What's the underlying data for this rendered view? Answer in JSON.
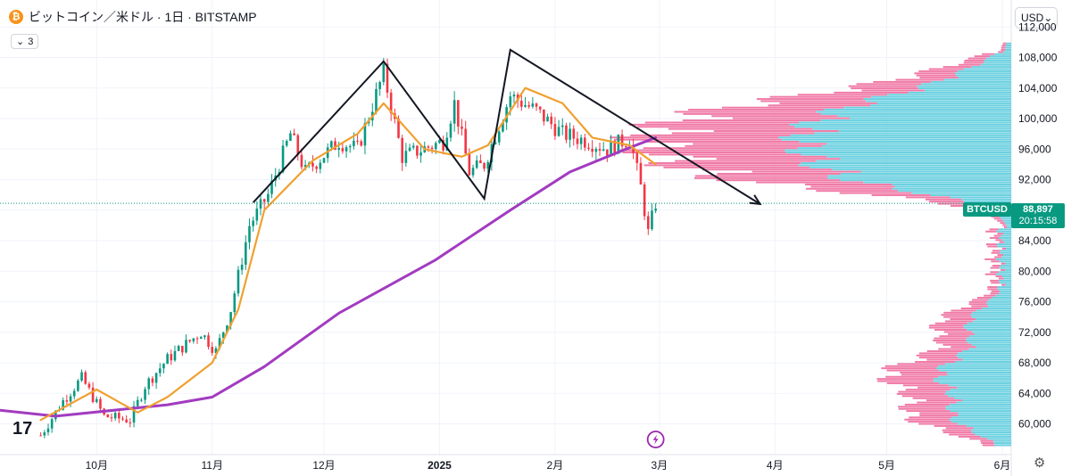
{
  "header": {
    "symbol_title": "ビットコイン／米ドル · 1日 · BITSTAMP",
    "coin_glyph": "₿"
  },
  "indicators": {
    "count": "3"
  },
  "currency": {
    "label": "USD"
  },
  "price_tag": {
    "symbol": "BTCUSD",
    "price": "88,897",
    "countdown": "20:15:58"
  },
  "logo": "17",
  "chart_data": {
    "type": "candlestick",
    "symbol": "BTCUSD",
    "interval": "1D",
    "last_price": 88897,
    "y_ticks": [
      "112,000",
      "108,000",
      "104,000",
      "100,000",
      "96,000",
      "92,000",
      "88,000",
      "84,000",
      "80,000",
      "76,000",
      "72,000",
      "68,000",
      "64,000",
      "60,000"
    ],
    "y_range": [
      57000,
      113000
    ],
    "x_ticks": [
      "10月",
      "11月",
      "12月",
      "2025",
      "2月",
      "3月",
      "4月",
      "5月",
      "6月"
    ],
    "price_path": [
      [
        "2024-09-16",
        58500
      ],
      [
        "2024-09-22",
        63000
      ],
      [
        "2024-09-27",
        66000
      ],
      [
        "2024-10-03",
        61000
      ],
      [
        "2024-10-10",
        60500
      ],
      [
        "2024-10-14",
        65000
      ],
      [
        "2024-10-20",
        68500
      ],
      [
        "2024-10-29",
        72000
      ],
      [
        "2024-11-02",
        69500
      ],
      [
        "2024-11-06",
        75000
      ],
      [
        "2024-11-11",
        86000
      ],
      [
        "2024-11-16",
        90000
      ],
      [
        "2024-11-22",
        98000
      ],
      [
        "2024-11-26",
        93000
      ],
      [
        "2024-12-05",
        97000
      ],
      [
        "2024-12-10",
        96000
      ],
      [
        "2024-12-17",
        106000
      ],
      [
        "2024-12-22",
        95000
      ],
      [
        "2025-01-02",
        97000
      ],
      [
        "2025-01-05",
        102000
      ],
      [
        "2025-01-09",
        93000
      ],
      [
        "2025-01-13",
        94000
      ],
      [
        "2025-01-20",
        103000
      ],
      [
        "2025-01-27",
        101000
      ],
      [
        "2025-02-03",
        98000
      ],
      [
        "2025-02-10",
        97000
      ],
      [
        "2025-02-15",
        96000
      ],
      [
        "2025-02-21",
        97500
      ],
      [
        "2025-02-24",
        91000
      ],
      [
        "2025-02-26",
        85000
      ],
      [
        "2025-02-28",
        88897
      ]
    ],
    "ema_short": [
      [
        "2024-09-16",
        60500
      ],
      [
        "2024-10-01",
        64500
      ],
      [
        "2024-10-12",
        61500
      ],
      [
        "2024-10-20",
        63500
      ],
      [
        "2024-11-01",
        68000
      ],
      [
        "2024-11-08",
        75000
      ],
      [
        "2024-11-15",
        88000
      ],
      [
        "2024-11-28",
        94500
      ],
      [
        "2024-12-10",
        98000
      ],
      [
        "2024-12-17",
        102000
      ],
      [
        "2024-12-28",
        96000
      ],
      [
        "2025-01-07",
        95000
      ],
      [
        "2025-01-14",
        96500
      ],
      [
        "2025-01-24",
        104000
      ],
      [
        "2025-02-03",
        102000
      ],
      [
        "2025-02-11",
        97500
      ],
      [
        "2025-02-21",
        96500
      ],
      [
        "2025-02-28",
        94000
      ]
    ],
    "sma_long": [
      [
        "2024-09-01",
        62000
      ],
      [
        "2024-09-20",
        61000
      ],
      [
        "2024-10-20",
        62500
      ],
      [
        "2024-11-01",
        63500
      ],
      [
        "2024-11-15",
        67500
      ],
      [
        "2024-12-05",
        74500
      ],
      [
        "2024-12-31",
        81500
      ],
      [
        "2025-01-20",
        88000
      ],
      [
        "2025-02-05",
        93000
      ],
      [
        "2025-02-20",
        96000
      ],
      [
        "2025-02-28",
        97500
      ]
    ],
    "pattern_lines": [
      [
        [
          "2024-11-12",
          89000
        ],
        [
          "2024-12-17",
          107500
        ],
        [
          "2025-01-13",
          89500
        ],
        [
          "2025-01-20",
          109000
        ],
        [
          "2025-03-28",
          88800
        ]
      ]
    ],
    "volume_profile": {
      "type": "horizontal-histogram",
      "colors": {
        "up": "#6ad0e0",
        "down": "#f07aa6"
      }
    }
  }
}
